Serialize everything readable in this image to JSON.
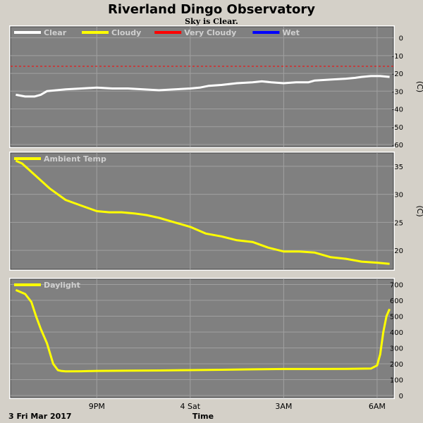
{
  "header": {
    "title": "Riverland Dingo Observatory",
    "subtitle": "Sky is Clear."
  },
  "footer": {
    "date_label": "3 Fri Mar 2017",
    "xlabel": "Time"
  },
  "colors": {
    "background": "#d4d0c8",
    "plot_bg": "#808080",
    "grid": "#a0a0a0",
    "clear": "#ffffff",
    "cloudy": "#ffff00",
    "very_cloudy": "#ff0000",
    "wet": "#0000ff",
    "ambient": "#ffff00",
    "daylight": "#ffff00"
  },
  "chart_data": [
    {
      "type": "line",
      "panel": "sky",
      "xlabel": "Time",
      "ylabel": "",
      "unit": "(C)",
      "x_ticks": [
        {
          "x": 21,
          "label": "9PM"
        },
        {
          "x": 24,
          "label": "4 Sat"
        },
        {
          "x": 27,
          "label": "3AM"
        },
        {
          "x": 30,
          "label": "6AM"
        }
      ],
      "xlim": [
        18.3,
        30.5
      ],
      "ylim": [
        -60,
        5
      ],
      "y_ticks": [
        0,
        -10,
        -20,
        -30,
        -40,
        -50,
        -60
      ],
      "legend": [
        {
          "name": "Clear",
          "color": "#ffffff"
        },
        {
          "name": "Cloudy",
          "color": "#ffff00"
        },
        {
          "name": "Very Cloudy",
          "color": "#ff0000"
        },
        {
          "name": "Wet",
          "color": "#0000ff"
        }
      ],
      "grid": true,
      "threshold": {
        "y": -16,
        "color": "#ff0000",
        "style": "dashed"
      },
      "series": [
        {
          "name": "Clear",
          "color": "#ffffff",
          "x": [
            18.4,
            18.7,
            19.0,
            19.2,
            19.4,
            19.7,
            20.0,
            20.5,
            21.0,
            21.5,
            22.0,
            22.5,
            23.0,
            23.5,
            24.0,
            24.3,
            24.6,
            25.0,
            25.5,
            26.0,
            26.3,
            26.6,
            27.0,
            27.4,
            27.8,
            28.0,
            28.5,
            29.0,
            29.3,
            29.5,
            29.8,
            30.1,
            30.4
          ],
          "y": [
            -32,
            -33,
            -33,
            -32,
            -30,
            -29.5,
            -29,
            -28.5,
            -28,
            -28.5,
            -28.5,
            -29,
            -29.5,
            -29,
            -28.5,
            -28,
            -27,
            -26.5,
            -25.5,
            -25,
            -24.5,
            -25,
            -25.5,
            -25,
            -25,
            -24,
            -23.5,
            -23,
            -22.5,
            -22,
            -21.5,
            -21.5,
            -22
          ]
        }
      ]
    },
    {
      "type": "line",
      "panel": "ambient",
      "xlabel": "",
      "ylabel": "",
      "unit": "(C)",
      "xlim": [
        18.3,
        30.5
      ],
      "ylim": [
        17,
        37
      ],
      "y_ticks": [
        35,
        30,
        25,
        20
      ],
      "legend": [
        {
          "name": "Ambient Temp",
          "color": "#ffff00"
        }
      ],
      "grid": true,
      "series": [
        {
          "name": "Ambient Temp",
          "color": "#ffff00",
          "x": [
            18.4,
            18.6,
            19.0,
            19.5,
            20.0,
            20.5,
            21.0,
            21.4,
            21.8,
            22.2,
            22.6,
            23.0,
            23.5,
            24.0,
            24.5,
            25.0,
            25.5,
            26.0,
            26.5,
            27.0,
            27.5,
            28.0,
            28.5,
            29.0,
            29.5,
            30.0,
            30.4
          ],
          "y": [
            36,
            35.5,
            33.5,
            31,
            29,
            28,
            27,
            26.8,
            26.8,
            26.6,
            26.3,
            25.8,
            25,
            24.2,
            23,
            22.5,
            21.8,
            21.5,
            20.5,
            19.8,
            19.8,
            19.6,
            18.8,
            18.5,
            18,
            17.8,
            17.6
          ]
        }
      ]
    },
    {
      "type": "line",
      "panel": "daylight",
      "xlabel": "Time",
      "ylabel": "",
      "xlim": [
        18.3,
        30.5
      ],
      "ylim": [
        0,
        720
      ],
      "y_ticks": [
        700,
        600,
        500,
        400,
        300,
        200,
        100,
        0
      ],
      "legend": [
        {
          "name": "Daylight",
          "color": "#ffff00"
        }
      ],
      "grid": true,
      "series": [
        {
          "name": "Daylight",
          "color": "#ffff00",
          "x": [
            18.4,
            18.7,
            18.9,
            19.05,
            19.2,
            19.4,
            19.6,
            19.75,
            19.85,
            20.0,
            20.5,
            21.0,
            22.0,
            23.0,
            24.0,
            25.0,
            26.0,
            27.0,
            28.0,
            29.0,
            29.8,
            30.0,
            30.1,
            30.2,
            30.3,
            30.4
          ],
          "y": [
            665,
            640,
            590,
            500,
            420,
            330,
            200,
            160,
            155,
            152,
            153,
            155,
            157,
            158,
            160,
            162,
            165,
            167,
            167,
            168,
            170,
            190,
            260,
            400,
            500,
            545
          ]
        }
      ]
    }
  ]
}
